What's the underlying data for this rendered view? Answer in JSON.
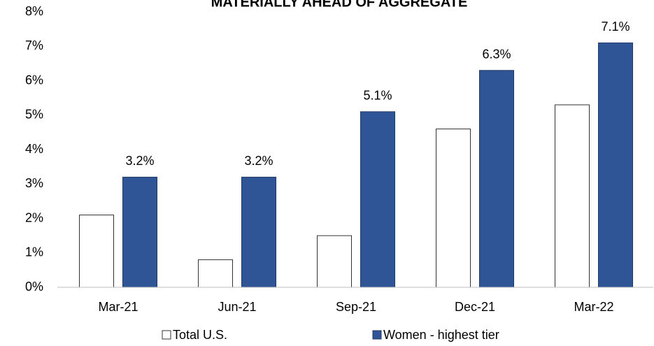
{
  "chart_data": {
    "type": "bar",
    "title": "MATERIALLY AHEAD OF AGGREGATE",
    "categories": [
      "Mar-21",
      "Jun-21",
      "Sep-21",
      "Dec-21",
      "Mar-22"
    ],
    "series": [
      {
        "name": "Total U.S.",
        "color": "#ffffff",
        "values": [
          2.1,
          0.8,
          1.5,
          4.6,
          5.3
        ]
      },
      {
        "name": "Women - highest tier",
        "color": "#2f5597",
        "values": [
          3.2,
          3.2,
          5.1,
          6.3,
          7.1
        ],
        "value_labels": [
          "3.2%",
          "3.2%",
          "5.1%",
          "6.3%",
          "7.1%"
        ]
      }
    ],
    "ylim": [
      0,
      8
    ],
    "yticks": [
      {
        "value": 0,
        "label": "0%"
      },
      {
        "value": 1,
        "label": "1%"
      },
      {
        "value": 2,
        "label": "2%"
      },
      {
        "value": 3,
        "label": "3%"
      },
      {
        "value": 4,
        "label": "4%"
      },
      {
        "value": 5,
        "label": "5%"
      },
      {
        "value": 6,
        "label": "6%"
      },
      {
        "value": 7,
        "label": "7%"
      },
      {
        "value": 8,
        "label": "8%"
      }
    ],
    "grid": false,
    "legend": "bottom"
  }
}
